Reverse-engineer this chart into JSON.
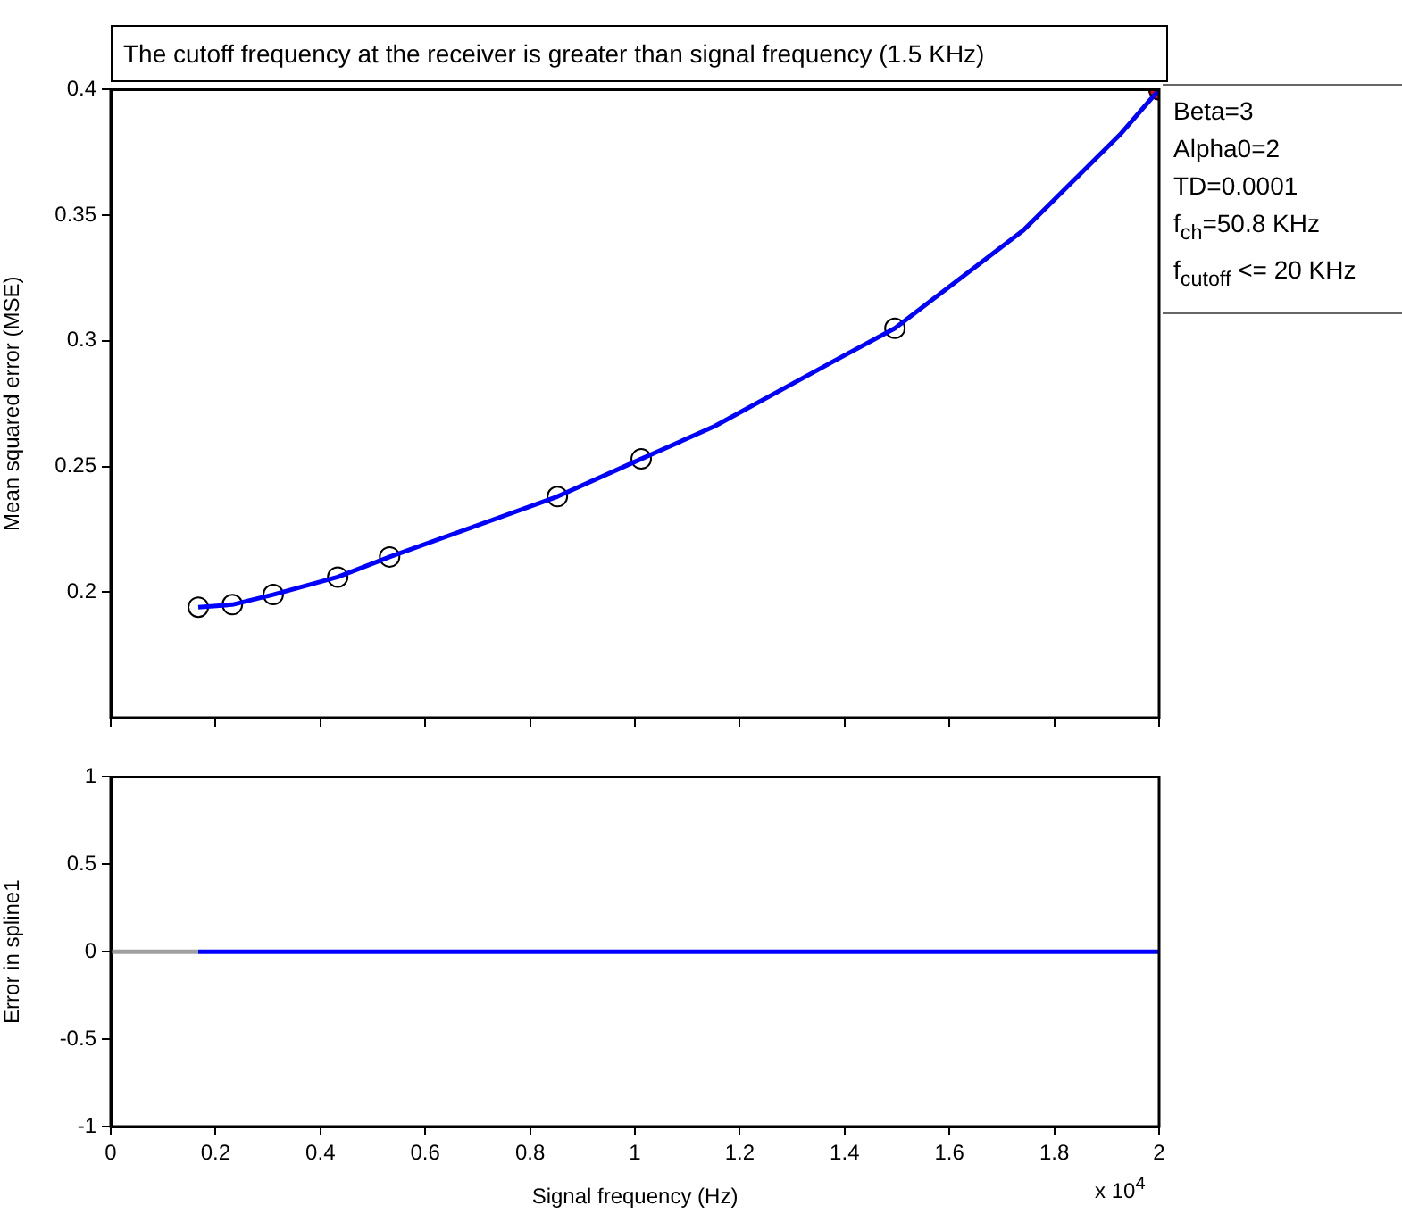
{
  "chart_data": [
    {
      "type": "line",
      "title": "The cutoff frequency at the receiver is greater than signal frequency (1.5 KHz)",
      "ylabel": "Mean squared error (MSE)",
      "xlim": [
        0,
        2
      ],
      "xticks": [
        0,
        0.2,
        0.4,
        0.6,
        0.8,
        1,
        1.2,
        1.4,
        1.6,
        1.8,
        2
      ],
      "ylim": [
        0.15,
        0.4
      ],
      "yticks": [
        0.2,
        0.25,
        0.3,
        0.35,
        0.4
      ],
      "grid": false,
      "legend": false,
      "tick_labels": "y",
      "annotations": [
        "Beta=3",
        "Alpha0=2",
        "TD=0.0001",
        "f$_{ch}$=50.8 KHz",
        "f$_{cutoff}$ <= 20 KHz"
      ],
      "series": [
        {
          "type": "line",
          "color": "#0000ff",
          "marker": "none",
          "x": [
            0.167,
            0.232,
            0.31,
            0.433,
            0.532,
            0.852,
            1.012,
            1.152,
            1.38,
            1.496,
            1.741,
            1.925,
            2
          ],
          "values": [
            0.194,
            0.195,
            0.199,
            0.206,
            0.214,
            0.238,
            0.253,
            0.266,
            0.292,
            0.305,
            0.344,
            0.382,
            0.4
          ]
        },
        {
          "type": "scatter",
          "color": "#000000",
          "marker": "circle",
          "x": [
            0.167,
            0.232,
            0.31,
            0.433,
            0.532,
            0.852,
            1.012,
            1.496,
            2
          ],
          "values": [
            0.194,
            0.195,
            0.199,
            0.206,
            0.214,
            0.238,
            0.253,
            0.305,
            0.4
          ]
        },
        {
          "type": "scatter",
          "color": "#ff0000",
          "marker": "circle",
          "x": [
            2
          ],
          "values": [
            0.4
          ]
        }
      ]
    },
    {
      "type": "line",
      "xlabel": "Signal frequency (Hz)",
      "ylabel": "Error in spline1",
      "xlim": [
        0,
        2
      ],
      "xticks": [
        0,
        0.2,
        0.4,
        0.6,
        0.8,
        1,
        1.2,
        1.4,
        1.6,
        1.8,
        2
      ],
      "ylim": [
        -1,
        1
      ],
      "yticks": [
        -1,
        -0.5,
        0,
        0.5,
        1
      ],
      "grid": false,
      "legend": false,
      "annotations": [
        "x 10$^{4}$"
      ],
      "series": [
        {
          "type": "line",
          "color": "#a0a0a0",
          "marker": "none",
          "x": [
            0,
            0.167
          ],
          "values": [
            0,
            0
          ]
        },
        {
          "type": "line",
          "color": "#0000ff",
          "marker": "none",
          "x": [
            0.167,
            2
          ],
          "values": [
            0,
            0
          ]
        }
      ]
    }
  ]
}
